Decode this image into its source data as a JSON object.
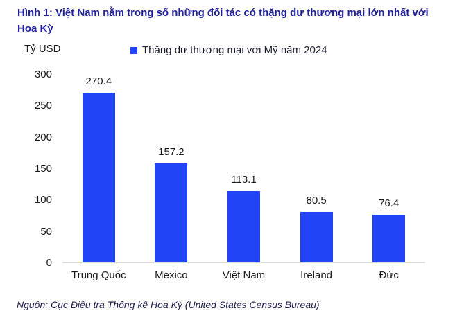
{
  "figure": {
    "title": "Hình 1: Việt Nam nằm trong số những đối tác có thặng dư thương mại lớn nhất với Hoa Kỳ",
    "unit_label": "Tỷ USD",
    "legend_label": "Thặng dư thương mại với Mỹ năm 2024",
    "source": "Nguồn: Cục Điều tra Thống kê Hoa Kỳ (United States Census Bureau)"
  },
  "colors": {
    "bar": "#2343F7",
    "title_text": "#21219C",
    "label_text": "#1A1A1A",
    "legend_text": "#1C1C30",
    "source_text": "#1D1D4F",
    "axis_line": "#D9D9D9",
    "background": "#FFFFFF"
  },
  "chart_data": {
    "type": "bar",
    "title": "Hình 1: Việt Nam nằm trong số những đối tác có thặng dư thương mại lớn nhất với Hoa Kỳ",
    "legend": [
      "Thặng dư thương mại với Mỹ năm 2024"
    ],
    "legend_position": "top",
    "categories": [
      "Trung Quốc",
      "Mexico",
      "Việt Nam",
      "Ireland",
      "Đức"
    ],
    "values": [
      270.4,
      157.2,
      113.1,
      80.5,
      76.4
    ],
    "value_labels": true,
    "xlabel": "",
    "ylabel": "Tỷ USD",
    "ylim": [
      0,
      300
    ],
    "yticks": [
      0,
      50,
      100,
      150,
      200,
      250,
      300
    ],
    "grid": false,
    "source": "Nguồn: Cục Điều tra Thống kê Hoa Kỳ (United States Census Bureau)"
  }
}
